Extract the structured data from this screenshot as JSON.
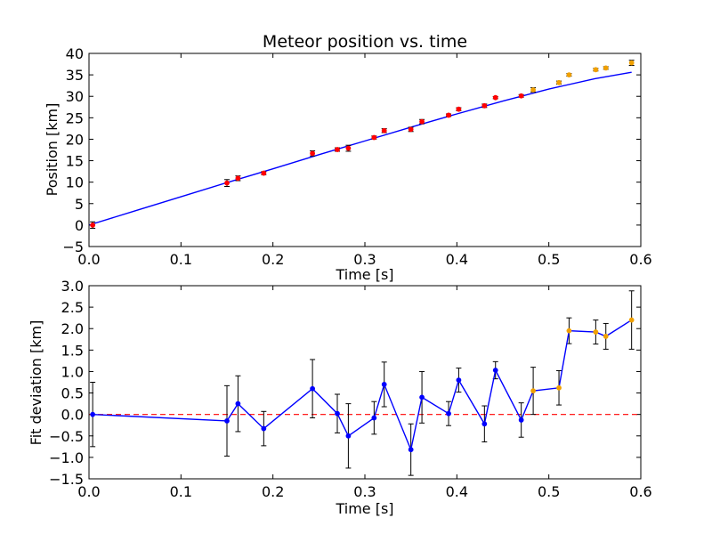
{
  "chart_data": [
    {
      "type": "scatter",
      "title": "Meteor position vs. time",
      "xlabel": "Time [s]",
      "ylabel": "Position [km]",
      "xlim": [
        0.0,
        0.6
      ],
      "ylim": [
        -5,
        40
      ],
      "xticks": [
        "0.0",
        "0.1",
        "0.2",
        "0.3",
        "0.4",
        "0.5",
        "0.6"
      ],
      "yticks": [
        "−5",
        "0",
        "5",
        "10",
        "15",
        "20",
        "25",
        "30",
        "35",
        "40"
      ],
      "grid": false,
      "colors": {
        "red_points": "#ff0000",
        "orange_points": "#f0a000",
        "fit_line": "#0000ff",
        "errorbar": "#000000"
      },
      "series": [
        {
          "marker": "red",
          "x": [
            0.004,
            0.15,
            0.162,
            0.19,
            0.243,
            0.27,
            0.282,
            0.31,
            0.321,
            0.35,
            0.362,
            0.391,
            0.402,
            0.43,
            0.442,
            0.47
          ],
          "y": [
            0.0,
            9.8,
            10.9,
            12.1,
            16.7,
            17.6,
            17.9,
            20.4,
            22.0,
            22.3,
            24.1,
            25.6,
            27.0,
            27.8,
            29.7,
            30.1
          ],
          "err": [
            0.75,
            0.8,
            0.55,
            0.35,
            0.6,
            0.4,
            0.7,
            0.35,
            0.45,
            0.5,
            0.5,
            0.3,
            0.35,
            0.4,
            0.25,
            0.3
          ]
        },
        {
          "marker": "orange",
          "x": [
            0.483,
            0.511,
            0.522,
            0.551,
            0.562,
            0.59
          ],
          "y": [
            31.5,
            33.2,
            35.0,
            36.2,
            36.6,
            37.8
          ],
          "err": [
            0.5,
            0.35,
            0.3,
            0.3,
            0.3,
            0.6
          ]
        },
        {
          "type": "line",
          "x": [
            0.0,
            0.05,
            0.1,
            0.15,
            0.2,
            0.25,
            0.3,
            0.35,
            0.4,
            0.45,
            0.5,
            0.55,
            0.59
          ],
          "y": [
            0.0,
            3.3,
            6.6,
            9.9,
            13.1,
            16.4,
            19.6,
            22.8,
            25.9,
            28.9,
            31.7,
            34.1,
            35.6
          ]
        }
      ]
    },
    {
      "type": "line",
      "xlabel": "Time [s]",
      "ylabel": "Fit deviation [km]",
      "xlim": [
        0.0,
        0.6
      ],
      "ylim": [
        -1.5,
        3.0
      ],
      "xticks": [
        "0.0",
        "0.1",
        "0.2",
        "0.3",
        "0.4",
        "0.5",
        "0.6"
      ],
      "yticks": [
        "−1.5",
        "−1.0",
        "−0.5",
        "0.0",
        "0.5",
        "1.0",
        "1.5",
        "2.0",
        "2.5",
        "3.0"
      ],
      "grid": false,
      "reference_line": {
        "y": 0.0,
        "style": "dashed",
        "color": "#ff0000"
      },
      "colors": {
        "line": "#0000ff",
        "blue_points": "#0000ff",
        "orange_points": "#f0a000"
      },
      "series": [
        {
          "x": [
            0.004,
            0.15,
            0.162,
            0.19,
            0.243,
            0.27,
            0.282,
            0.31,
            0.321,
            0.35,
            0.362,
            0.391,
            0.402,
            0.43,
            0.442,
            0.47,
            0.483,
            0.511,
            0.522,
            0.551,
            0.562,
            0.59
          ],
          "y": [
            0.0,
            -0.15,
            0.25,
            -0.33,
            0.6,
            0.02,
            -0.5,
            -0.08,
            0.7,
            -0.82,
            0.4,
            0.02,
            0.8,
            -0.22,
            1.03,
            -0.13,
            0.55,
            0.62,
            1.95,
            1.92,
            1.82,
            2.2
          ],
          "err": [
            0.75,
            0.82,
            0.65,
            0.4,
            0.68,
            0.45,
            0.75,
            0.38,
            0.52,
            0.6,
            0.6,
            0.28,
            0.28,
            0.42,
            0.2,
            0.4,
            0.55,
            0.4,
            0.3,
            0.28,
            0.3,
            0.68
          ],
          "marker_colors": [
            "blue",
            "blue",
            "blue",
            "blue",
            "blue",
            "blue",
            "blue",
            "blue",
            "blue",
            "blue",
            "blue",
            "blue",
            "blue",
            "blue",
            "blue",
            "blue",
            "orange",
            "orange",
            "orange",
            "orange",
            "orange",
            "orange"
          ]
        }
      ]
    }
  ]
}
